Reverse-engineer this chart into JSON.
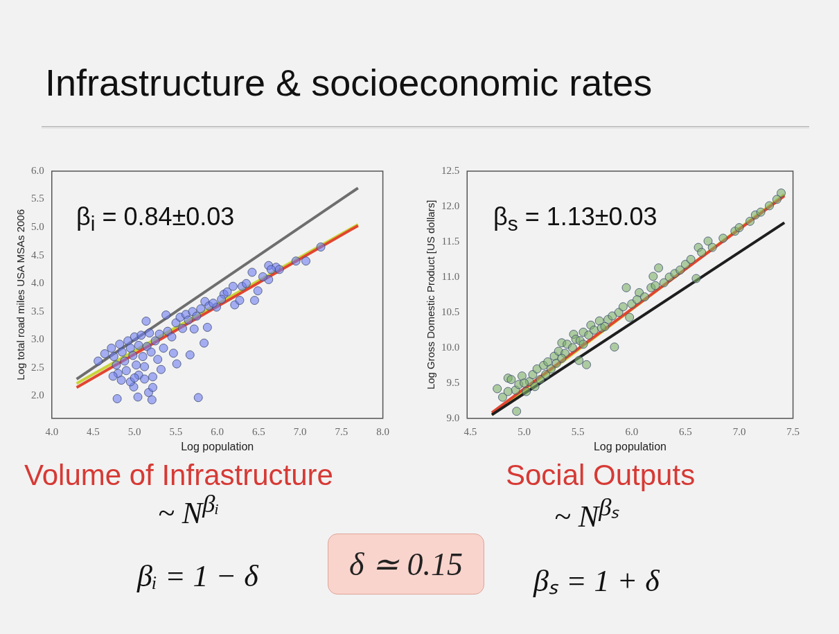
{
  "chart_data": [
    {
      "type": "scatter",
      "title": "Infrastructure & socioeconomic rates",
      "xlabel": "Log population",
      "ylabel": "Log total road miles USA MSAs 2006",
      "xlim": [
        4.0,
        8.0
      ],
      "ylim": [
        1.6,
        6.0
      ],
      "xticks": [
        {
          "value": 4,
          "label": "4.0"
        },
        {
          "value": 4.5,
          "label": "4.5"
        },
        {
          "value": 5,
          "label": "5.0"
        },
        {
          "value": 5.5,
          "label": "5.5"
        },
        {
          "value": 6,
          "label": "6.0"
        },
        {
          "value": 6.5,
          "label": "6.5"
        },
        {
          "value": 7,
          "label": "7.0"
        },
        {
          "value": 7.5,
          "label": "7.5"
        },
        {
          "value": 8,
          "label": "8.0"
        }
      ],
      "yticks": [
        {
          "value": 2,
          "label": "2.0"
        },
        {
          "value": 2.5,
          "label": "2.5"
        },
        {
          "value": 3,
          "label": "3.0"
        },
        {
          "value": 3.5,
          "label": "3.5"
        },
        {
          "value": 4,
          "label": "4.0"
        },
        {
          "value": 4.5,
          "label": "4.5"
        },
        {
          "value": 5,
          "label": "5.0"
        },
        {
          "value": 5.5,
          "label": "5.5"
        },
        {
          "value": 6,
          "label": "6.0"
        }
      ],
      "grid": false,
      "series": [
        {
          "marker": "circle",
          "color": "#6f7ff0",
          "x": [
            4.56,
            4.64,
            4.79,
            5.04,
            4.99,
            5.05,
            5.17,
            5.21,
            5.22,
            5.22,
            5.32,
            5.47,
            5.51,
            5.67,
            5.77,
            5.84,
            5.88,
            5.14,
            5.38,
            5.72,
            5.85,
            5.99,
            6.08,
            6.21,
            6.27,
            6.19,
            6.42,
            6.45,
            6.49,
            6.62,
            6.62,
            6.71,
            7.07,
            7.25,
            4.72,
            4.75,
            4.78,
            4.8,
            4.82,
            4.85,
            4.88,
            4.9,
            4.92,
            4.95,
            4.98,
            5.0,
            5.02,
            5.05,
            5.08,
            5.1,
            5.12,
            5.15,
            5.18,
            5.2,
            5.25,
            5.28,
            5.3,
            5.35,
            5.4,
            5.45,
            5.5,
            5.55,
            5.58,
            5.62,
            5.65,
            5.7,
            5.75,
            5.8,
            5.9,
            5.95,
            6.05,
            6.12,
            6.3,
            6.35,
            6.55,
            6.65,
            6.75,
            6.95,
            4.74,
            4.84,
            4.95,
            5.12,
            5.0
          ],
          "values": [
            2.62,
            2.75,
            1.95,
            1.98,
            2.16,
            2.37,
            2.06,
            1.93,
            2.15,
            2.34,
            2.47,
            2.76,
            2.57,
            2.73,
            1.97,
            2.94,
            3.22,
            3.33,
            3.44,
            3.19,
            3.68,
            3.58,
            3.81,
            3.62,
            3.7,
            3.95,
            4.2,
            3.7,
            3.87,
            4.07,
            4.32,
            4.29,
            4.4,
            4.65,
            2.85,
            2.7,
            2.55,
            2.4,
            2.92,
            2.78,
            2.62,
            2.45,
            2.98,
            2.85,
            2.72,
            3.05,
            2.55,
            2.9,
            3.08,
            2.7,
            2.52,
            2.88,
            3.12,
            2.78,
            2.98,
            2.65,
            3.1,
            2.85,
            3.15,
            3.05,
            3.3,
            3.4,
            3.2,
            3.45,
            3.35,
            3.5,
            3.42,
            3.55,
            3.6,
            3.65,
            3.72,
            3.85,
            3.95,
            4.0,
            4.12,
            4.25,
            4.25,
            4.4,
            2.35,
            2.28,
            2.25,
            2.3,
            2.32
          ]
        },
        {
          "type": "line",
          "marker": "none",
          "color": "#6e6e6e",
          "x": [
            4.3,
            7.7
          ],
          "values": [
            2.3,
            5.7
          ]
        },
        {
          "type": "line",
          "marker": "none",
          "color": "#e2452f",
          "x": [
            4.3,
            7.7
          ],
          "values": [
            2.15,
            5.03
          ]
        },
        {
          "type": "line",
          "marker": "none",
          "color": "#c8d43a",
          "x": [
            4.3,
            7.7
          ],
          "values": [
            2.22,
            5.05
          ]
        }
      ],
      "annotations": [
        "β$_{i}$ = 0.84±0.03",
        "Volume of Infrastructure",
        "~ N$^{βᵢ}$",
        "βᵢ = 1 − δ"
      ]
    },
    {
      "type": "scatter",
      "xlabel": "Log population",
      "ylabel": "Log Gross Domestic Product [US dollars]",
      "xlim": [
        4.47,
        7.5
      ],
      "ylim": [
        9.0,
        12.5
      ],
      "xticks": [
        {
          "value": 4.5,
          "label": "4.5"
        },
        {
          "value": 5,
          "label": "5.0"
        },
        {
          "value": 5.5,
          "label": "5.5"
        },
        {
          "value": 6,
          "label": "6.0"
        },
        {
          "value": 6.5,
          "label": "6.5"
        },
        {
          "value": 7,
          "label": "7.0"
        },
        {
          "value": 7.5,
          "label": "7.5"
        }
      ],
      "yticks": [
        {
          "value": 9,
          "label": "9.0"
        },
        {
          "value": 9.5,
          "label": "9.5"
        },
        {
          "value": 10,
          "label": "10.0"
        },
        {
          "value": 10.5,
          "label": "10.5"
        },
        {
          "value": 11,
          "label": "11.0"
        },
        {
          "value": 11.5,
          "label": "11.5"
        },
        {
          "value": 12,
          "label": "12.0"
        },
        {
          "value": 12.5,
          "label": "12.5"
        }
      ],
      "grid": false,
      "series": [
        {
          "marker": "circle",
          "color": "#7fb069",
          "x": [
            4.75,
            4.93,
            4.85,
            5.46,
            5.35,
            5.58,
            5.51,
            5.84,
            5.95,
            5.98,
            6.07,
            6.2,
            6.25,
            6.6,
            6.62,
            6.71,
            6.96,
            7.1,
            7.28,
            7.39,
            4.88,
            4.92,
            4.95,
            4.98,
            5.02,
            5.05,
            5.08,
            5.1,
            5.12,
            5.15,
            5.18,
            5.2,
            5.22,
            5.25,
            5.28,
            5.3,
            5.32,
            5.38,
            5.4,
            5.45,
            5.48,
            5.52,
            5.55,
            5.6,
            5.62,
            5.65,
            5.7,
            5.72,
            5.78,
            5.82,
            5.88,
            5.92,
            6.0,
            6.05,
            6.12,
            6.18,
            6.22,
            6.3,
            6.35,
            6.4,
            6.45,
            6.5,
            6.55,
            6.65,
            6.75,
            6.85,
            7.0,
            7.15,
            7.2,
            7.35,
            4.8,
            4.85,
            5.0,
            5.35,
            5.55,
            5.75
          ],
          "values": [
            9.42,
            9.1,
            9.57,
            10.19,
            10.07,
            9.76,
            9.82,
            10.01,
            10.85,
            10.43,
            10.78,
            11.01,
            11.13,
            10.98,
            11.42,
            11.51,
            11.65,
            11.79,
            12.01,
            12.19,
            9.55,
            9.4,
            9.48,
            9.6,
            9.38,
            9.52,
            9.62,
            9.45,
            9.7,
            9.55,
            9.75,
            9.62,
            9.8,
            9.7,
            9.88,
            9.78,
            9.95,
            9.92,
            10.05,
            10.0,
            10.12,
            10.1,
            10.22,
            10.18,
            10.32,
            10.25,
            10.38,
            10.28,
            10.4,
            10.45,
            10.5,
            10.58,
            10.62,
            10.68,
            10.72,
            10.85,
            10.88,
            10.92,
            11.0,
            11.05,
            11.1,
            11.18,
            11.25,
            11.35,
            11.42,
            11.55,
            11.7,
            11.88,
            11.92,
            12.1,
            9.3,
            9.38,
            9.5,
            9.85,
            10.05,
            10.3
          ]
        },
        {
          "type": "line",
          "marker": "none",
          "color": "#1e1e1e",
          "x": [
            4.7,
            7.42
          ],
          "values": [
            9.05,
            11.77
          ]
        },
        {
          "type": "line",
          "marker": "none",
          "color": "#e2452f",
          "x": [
            4.7,
            7.42
          ],
          "values": [
            9.08,
            12.15
          ]
        },
        {
          "type": "line",
          "marker": "none",
          "color": "#c8d43a",
          "x": [
            4.7,
            7.42
          ],
          "values": [
            9.05,
            12.17
          ]
        }
      ],
      "annotations": [
        "β$_{s}$ = 1.13±0.03",
        "Social Outputs",
        "~ N$^{βₛ}$",
        "βₛ = 1 + δ",
        "δ ≃ 0.15"
      ]
    }
  ]
}
